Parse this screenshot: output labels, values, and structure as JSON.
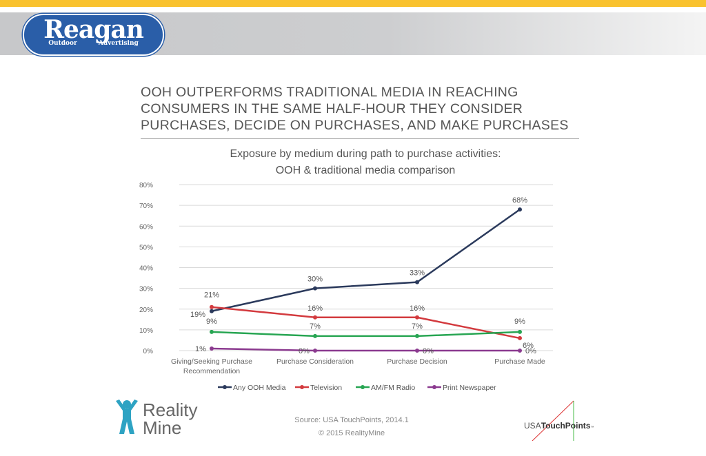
{
  "header": {
    "logo_main": "Reagan",
    "logo_sub": "Outdoor Advertising",
    "colors": {
      "band": "#f9c22e",
      "logo": "#2a5ea8"
    }
  },
  "headline": "OOH OUTPERFORMS TRADITIONAL MEDIA IN REACHING CONSUMERS IN THE SAME HALF-HOUR THEY CONSIDER PURCHASES, DECIDE ON PURCHASES, AND MAKE PURCHASES",
  "chart_data": {
    "type": "line",
    "title": "Exposure by medium during path to purchase activities: OOH & traditional media comparison",
    "title_lines": [
      "Exposure by medium during path to purchase activities:",
      "OOH & traditional media comparison"
    ],
    "categories": [
      "Giving/Seeking Purchase Recommendation",
      "Purchase Consideration",
      "Purchase Decision",
      "Purchase Made"
    ],
    "category_lines": [
      [
        "Giving/Seeking Purchase",
        "Recommendation"
      ],
      [
        "Purchase Consideration"
      ],
      [
        "Purchase Decision"
      ],
      [
        "Purchase Made"
      ]
    ],
    "ylim": [
      0,
      80
    ],
    "yticks": [
      "0%",
      "10%",
      "20%",
      "30%",
      "40%",
      "50%",
      "60%",
      "70%",
      "80%"
    ],
    "grid": true,
    "legend": "bottom",
    "series": [
      {
        "name": "Any OOH Media",
        "color": "#2b3a5c",
        "values": [
          19,
          30,
          33,
          68
        ]
      },
      {
        "name": "Television",
        "color": "#d33a3e",
        "values": [
          21,
          16,
          16,
          6
        ]
      },
      {
        "name": "AM/FM Radio",
        "color": "#27a552",
        "values": [
          9,
          7,
          7,
          9
        ]
      },
      {
        "name": "Print Newspaper",
        "color": "#8b3a8f",
        "values": [
          1,
          0,
          0,
          0
        ]
      }
    ]
  },
  "footer": {
    "source": "Source: USA TouchPoints, 2014.1",
    "copyright": "© 2015 RealityMine",
    "realitymine_logo": "Reality Mine",
    "touchpoints_logo": "USATouchPoints"
  }
}
